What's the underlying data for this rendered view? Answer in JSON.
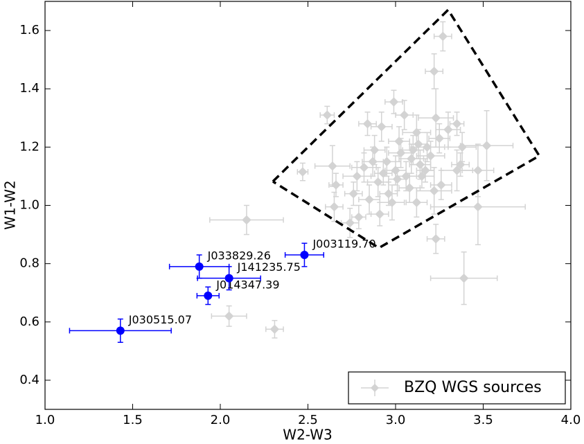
{
  "chart_data": {
    "type": "scatter",
    "xlabel": "W2-W3",
    "ylabel": "W1-W2",
    "xlim": [
      1.0,
      4.0
    ],
    "ylim": [
      0.3,
      1.7
    ],
    "xticks": [
      {
        "value": 1.0,
        "label": "1.0"
      },
      1.5,
      {
        "value": 2.0,
        "label": "2.0"
      },
      2.5,
      {
        "value": 3.0,
        "label": "3.0"
      },
      3.5,
      {
        "value": 4.0,
        "label": "4.0"
      }
    ],
    "yticks": [
      0.4,
      0.6,
      0.8,
      {
        "value": 1.0,
        "label": "1.0"
      },
      1.2,
      1.4,
      1.6
    ],
    "legend": "lower right",
    "region": {
      "x": [
        2.3,
        3.3,
        3.82,
        2.905,
        2.3
      ],
      "y": [
        1.082,
        1.671,
        1.17,
        0.854,
        1.082
      ],
      "color": "#000000"
    },
    "series": [
      {
        "name": "BZQ WGS sources",
        "color": "#d3d3d3",
        "marker": "diamond",
        "x": [
          2.15,
          2.05,
          2.31,
          3.39,
          3.23,
          3.27,
          3.22,
          2.61,
          2.47,
          2.64,
          3.47,
          3.52,
          3.47,
          3.37,
          3.23,
          2.99,
          2.66,
          2.74,
          2.79,
          2.65,
          2.84,
          2.88,
          2.92,
          3.05,
          3.12,
          3.18,
          3.3,
          3.35,
          3.38,
          3.26,
          3.22,
          3.12,
          2.98,
          2.91,
          2.85,
          2.76,
          2.78,
          2.82,
          2.9,
          2.95,
          3.0,
          3.03,
          3.06,
          3.09,
          3.14,
          3.17,
          3.2,
          3.08,
          2.96,
          2.87,
          3.02,
          3.13,
          3.25,
          2.93,
          3.01,
          3.1,
          3.35,
          3.15
        ],
        "y": [
          0.95,
          0.62,
          0.575,
          0.75,
          0.885,
          1.58,
          1.46,
          1.31,
          1.115,
          1.135,
          1.12,
          1.205,
          0.995,
          1.14,
          1.3,
          1.355,
          1.07,
          0.94,
          0.96,
          0.995,
          1.28,
          1.19,
          1.27,
          1.31,
          1.25,
          1.2,
          1.26,
          1.28,
          1.2,
          1.07,
          1.05,
          1.01,
          1.01,
          0.97,
          1.02,
          1.04,
          1.1,
          1.13,
          1.08,
          1.15,
          1.12,
          1.18,
          1.1,
          1.16,
          1.14,
          1.12,
          1.17,
          1.06,
          1.04,
          1.15,
          1.22,
          1.21,
          1.23,
          1.11,
          1.09,
          1.19,
          1.12,
          1.1
        ],
        "xerr": [
          0.21,
          0.1,
          0.05,
          0.19,
          0.05,
          0.05,
          0.05,
          0.04,
          0.03,
          0.1,
          0.09,
          0.15,
          0.27,
          0.05,
          0.1,
          0.05,
          0.04,
          0.05,
          0.04,
          0.05,
          0.05,
          0.06,
          0.06,
          0.05,
          0.08,
          0.1,
          0.07,
          0.04,
          0.08,
          0.06,
          0.1,
          0.06,
          0.07,
          0.05,
          0.06,
          0.05,
          0.08,
          0.07,
          0.06,
          0.08,
          0.06,
          0.07,
          0.06,
          0.07,
          0.06,
          0.05,
          0.08,
          0.06,
          0.05,
          0.06,
          0.06,
          0.05,
          0.06,
          0.05,
          0.05,
          0.06,
          0.09,
          0.07
        ],
        "yerr": [
          0.05,
          0.035,
          0.03,
          0.09,
          0.05,
          0.05,
          0.06,
          0.03,
          0.03,
          0.07,
          0.09,
          0.12,
          0.13,
          0.04,
          0.1,
          0.04,
          0.04,
          0.05,
          0.04,
          0.05,
          0.04,
          0.05,
          0.05,
          0.05,
          0.06,
          0.05,
          0.06,
          0.04,
          0.05,
          0.05,
          0.08,
          0.05,
          0.06,
          0.04,
          0.05,
          0.04,
          0.05,
          0.05,
          0.05,
          0.05,
          0.05,
          0.05,
          0.05,
          0.05,
          0.05,
          0.04,
          0.05,
          0.05,
          0.04,
          0.05,
          0.05,
          0.05,
          0.05,
          0.04,
          0.04,
          0.05,
          0.07,
          0.04
        ]
      },
      {
        "color": "#0000ff",
        "marker": "circle",
        "labels": [
          "J030515.07",
          "J014347.39",
          "J033829.26",
          "J141235.75",
          "J003119.70"
        ],
        "x": [
          1.43,
          1.93,
          1.88,
          2.05,
          2.48
        ],
        "y": [
          0.57,
          0.69,
          0.79,
          0.75,
          0.83
        ],
        "xerr": [
          0.29,
          0.063,
          0.17,
          0.18,
          0.11
        ],
        "yerr": [
          0.04,
          0.03,
          0.04,
          0.04,
          0.04
        ]
      }
    ]
  }
}
